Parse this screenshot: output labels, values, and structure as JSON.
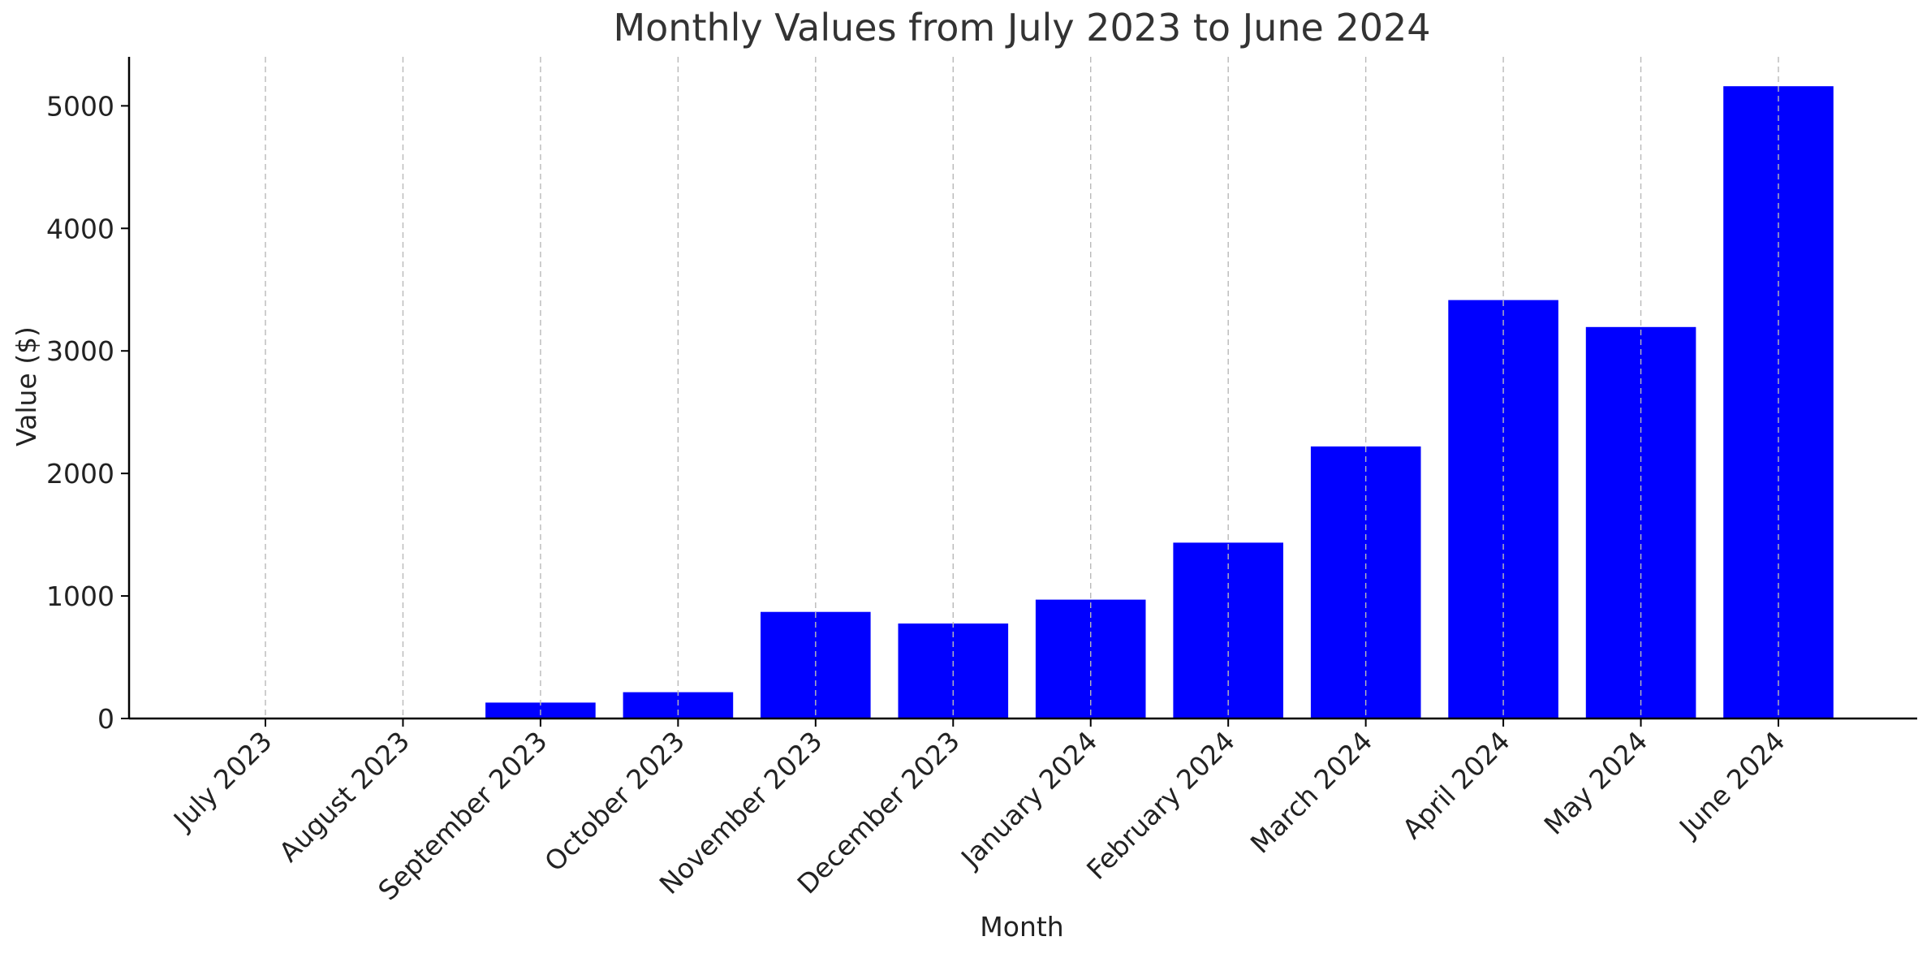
{
  "chart_data": {
    "type": "bar",
    "title": "Monthly Values from July 2023 to June 2024",
    "xlabel": "Month",
    "ylabel": "Value ($)",
    "categories": [
      "July 2023",
      "August 2023",
      "September 2023",
      "October 2023",
      "November 2023",
      "December 2023",
      "January 2024",
      "February 2024",
      "March 2024",
      "April 2024",
      "May 2024",
      "June 2024"
    ],
    "values": [
      0,
      0,
      130,
      215,
      870,
      775,
      970,
      1435,
      2220,
      3415,
      3195,
      5160
    ],
    "ylim": [
      0,
      5400
    ],
    "yticks": [
      0,
      1000,
      2000,
      3000,
      4000,
      5000
    ],
    "grid": "vertical, dashed",
    "bar_color": "#0000ff"
  }
}
